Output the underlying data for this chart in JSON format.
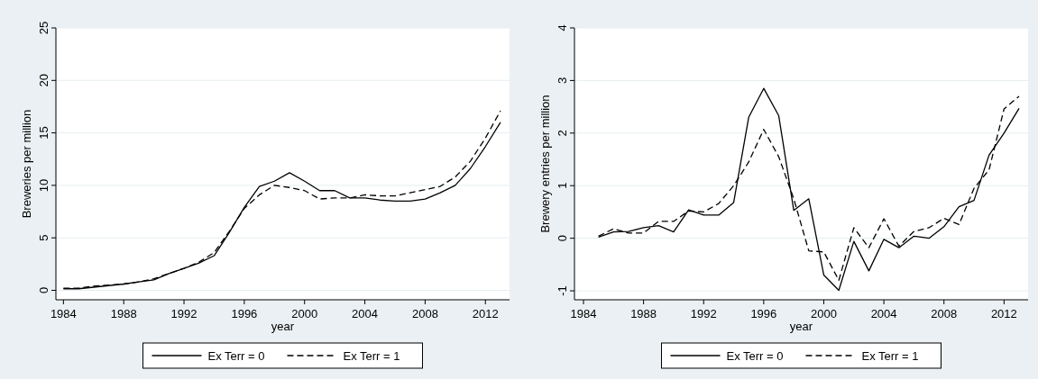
{
  "chart_data": [
    {
      "type": "line",
      "xlabel": "year",
      "ylabel": "Breweries per million",
      "x": [
        1984,
        1985,
        1986,
        1987,
        1988,
        1989,
        1990,
        1991,
        1992,
        1993,
        1994,
        1995,
        1996,
        1997,
        1998,
        1999,
        2000,
        2001,
        2002,
        2003,
        2004,
        2005,
        2006,
        2007,
        2008,
        2009,
        2010,
        2011,
        2012,
        2013
      ],
      "xlim": [
        1983.5,
        2013.6
      ],
      "xticks": [
        1984,
        1988,
        1992,
        1996,
        2000,
        2004,
        2008,
        2012
      ],
      "ylim": [
        -0.9,
        25
      ],
      "yticks": [
        0,
        5,
        10,
        15,
        20,
        25
      ],
      "grid": "y",
      "legend": "bottom",
      "series": [
        {
          "name": "Ex Terr = 0",
          "color": "#000000",
          "line_style": "solid",
          "values": [
            0.15,
            0.15,
            0.3,
            0.45,
            0.6,
            0.8,
            1.0,
            1.6,
            2.1,
            2.6,
            3.3,
            5.5,
            7.9,
            9.9,
            10.4,
            11.2,
            10.4,
            9.5,
            9.5,
            8.8,
            8.8,
            8.6,
            8.5,
            8.5,
            8.7,
            9.3,
            10.0,
            11.6,
            13.7,
            16.0
          ]
        },
        {
          "name": "Ex Terr = 1",
          "color": "#000000",
          "line_style": "dashed",
          "values": [
            0.2,
            0.2,
            0.4,
            0.5,
            0.6,
            0.8,
            1.1,
            1.6,
            2.1,
            2.7,
            3.6,
            5.6,
            7.8,
            9.1,
            10.0,
            9.8,
            9.5,
            8.7,
            8.8,
            8.8,
            9.1,
            9.0,
            9.0,
            9.3,
            9.6,
            9.9,
            10.8,
            12.3,
            14.5,
            17.1
          ]
        }
      ]
    },
    {
      "type": "line",
      "xlabel": "year",
      "ylabel": "Brewery entries per million",
      "x": [
        1985,
        1986,
        1987,
        1988,
        1989,
        1990,
        1991,
        1992,
        1993,
        1994,
        1995,
        1996,
        1997,
        1998,
        1999,
        2000,
        2001,
        2002,
        2003,
        2004,
        2005,
        2006,
        2007,
        2008,
        2009,
        2010,
        2011,
        2012,
        2013
      ],
      "xlim": [
        1983.4,
        2013.6
      ],
      "xticks": [
        1984,
        1988,
        1992,
        1996,
        2000,
        2004,
        2008,
        2012
      ],
      "ylim": [
        -1.17,
        4
      ],
      "yticks": [
        {
          "value": -1,
          "label": "-1"
        },
        0,
        1,
        2,
        3,
        4
      ],
      "grid": "y",
      "legend": "bottom",
      "series": [
        {
          "name": "Ex Terr = 0",
          "color": "#000000",
          "line_style": "solid",
          "values": [
            0.02,
            0.12,
            0.13,
            0.2,
            0.24,
            0.12,
            0.54,
            0.44,
            0.44,
            0.68,
            2.3,
            2.85,
            2.33,
            0.53,
            0.75,
            -0.7,
            -0.99,
            -0.06,
            -0.62,
            -0.02,
            -0.18,
            0.04,
            0.0,
            0.22,
            0.6,
            0.72,
            1.58,
            2.0,
            2.47
          ]
        },
        {
          "name": "Ex Terr = 1",
          "color": "#000000",
          "line_style": "dashed",
          "values": [
            0.04,
            0.18,
            0.1,
            0.1,
            0.32,
            0.32,
            0.52,
            0.5,
            0.66,
            1.0,
            1.45,
            2.07,
            1.55,
            0.75,
            -0.24,
            -0.26,
            -0.8,
            0.2,
            -0.18,
            0.37,
            -0.15,
            0.13,
            0.2,
            0.38,
            0.26,
            0.95,
            1.3,
            2.46,
            2.7
          ]
        }
      ]
    }
  ]
}
